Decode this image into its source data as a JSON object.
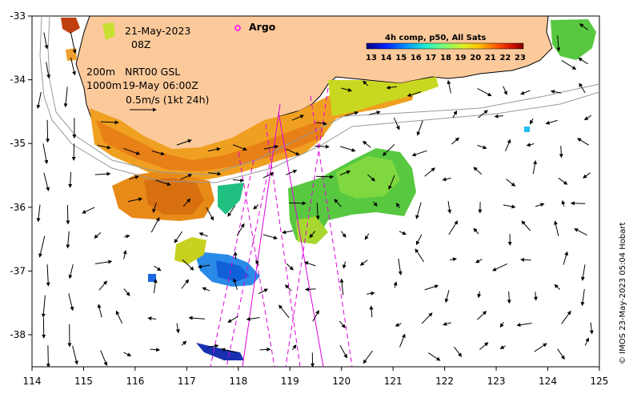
{
  "map": {
    "date": "21-May-2023",
    "hour": "08Z",
    "argo_label": "Argo",
    "depth_200": "200m",
    "depth_1000": "1000m",
    "current_source": "NRT00 GSL",
    "current_time": "19-May 06:00Z",
    "vector_scale": "0.5m/s (1kt 24h)",
    "credit": "© IMOS 23-May-2023 05:04 Hobart",
    "colorbar": {
      "title": "4h comp, p50, All Sats",
      "ticks": [
        "13",
        "14",
        "15",
        "16",
        "17",
        "18",
        "19",
        "20",
        "21",
        "22",
        "23"
      ],
      "colors": [
        "#00007f",
        "#0010ff",
        "#0090ff",
        "#10ffe0",
        "#60ff90",
        "#b0ff40",
        "#ffe000",
        "#ff8c00",
        "#ff2000",
        "#b00000",
        "#7f0000"
      ]
    },
    "x_ticks": [
      "114",
      "115",
      "116",
      "117",
      "118",
      "119",
      "120",
      "121",
      "122",
      "123",
      "124",
      "125"
    ],
    "y_ticks": [
      "-33",
      "-34",
      "-35",
      "-36",
      "-37",
      "-38"
    ],
    "colors": {
      "land": "#fcc99b",
      "argo": "#ff00ff",
      "track": "#e000e0",
      "isobath": "#999999"
    }
  }
}
